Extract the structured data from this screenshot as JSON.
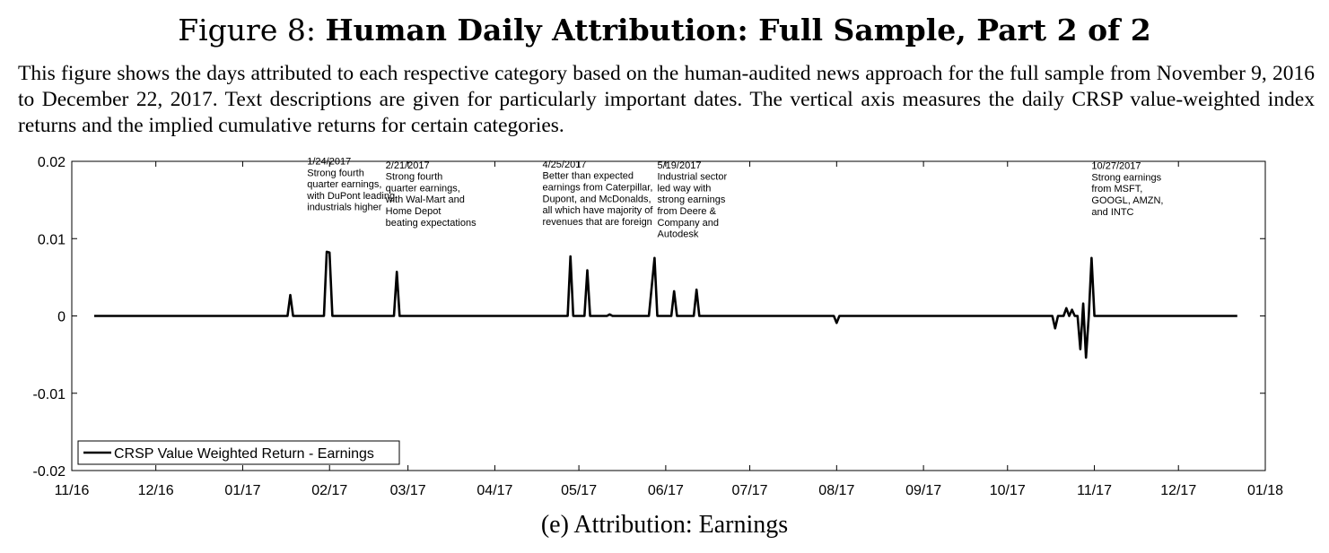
{
  "figure": {
    "prefix": "Figure 8:",
    "title": "Human Daily Attribution: Full Sample, Part 2 of 2",
    "caption": "This figure shows the days attributed to each respective category based on the human-audited news approach for the full sample from November 9, 2016 to December 22, 2017. Text descriptions are given for particularly important dates. The vertical axis measures the daily CRSP value-weighted index returns and the implied cumulative returns for certain categories.",
    "subcaption": "(e) Attribution: Earnings"
  },
  "chart_data": {
    "type": "line",
    "title": "",
    "xlabel": "",
    "ylabel": "",
    "xlim": [
      "2016-11-01",
      "2018-01-01"
    ],
    "ylim": [
      -0.02,
      0.02
    ],
    "grid": false,
    "legend_position": "bottom-left",
    "color": "#000000",
    "y_ticks": [
      {
        "value": 0.02,
        "label": "0.02"
      },
      {
        "value": 0.01,
        "label": "0.01"
      },
      {
        "value": 0,
        "label": "0"
      },
      {
        "value": -0.01,
        "label": "-0.01"
      },
      {
        "value": -0.02,
        "label": "-0.02"
      }
    ],
    "x_ticks": [
      {
        "date": "2016-11-01",
        "label": "11/16"
      },
      {
        "date": "2016-12-01",
        "label": "12/16"
      },
      {
        "date": "2017-01-01",
        "label": "01/17"
      },
      {
        "date": "2017-02-01",
        "label": "02/17"
      },
      {
        "date": "2017-03-01",
        "label": "03/17"
      },
      {
        "date": "2017-04-01",
        "label": "04/17"
      },
      {
        "date": "2017-05-01",
        "label": "05/17"
      },
      {
        "date": "2017-06-01",
        "label": "06/17"
      },
      {
        "date": "2017-07-01",
        "label": "07/17"
      },
      {
        "date": "2017-08-01",
        "label": "08/17"
      },
      {
        "date": "2017-09-01",
        "label": "09/17"
      },
      {
        "date": "2017-10-01",
        "label": "10/17"
      },
      {
        "date": "2017-11-01",
        "label": "11/17"
      },
      {
        "date": "2017-12-01",
        "label": "12/17"
      },
      {
        "date": "2018-01-01",
        "label": "01/18"
      }
    ],
    "series": [
      {
        "name": "CRSP Value Weighted Return - Earnings",
        "points": [
          {
            "date": "2016-11-09",
            "value": 0
          },
          {
            "date": "2017-01-17",
            "value": 0
          },
          {
            "date": "2017-01-18",
            "value": 0.0027
          },
          {
            "date": "2017-01-19",
            "value": 0
          },
          {
            "date": "2017-01-30",
            "value": 0
          },
          {
            "date": "2017-01-31",
            "value": 0.0083
          },
          {
            "date": "2017-02-01",
            "value": 0.0082
          },
          {
            "date": "2017-02-02",
            "value": 0
          },
          {
            "date": "2017-02-24",
            "value": 0
          },
          {
            "date": "2017-02-25",
            "value": 0.0057
          },
          {
            "date": "2017-02-26",
            "value": 0
          },
          {
            "date": "2017-04-27",
            "value": 0
          },
          {
            "date": "2017-04-28",
            "value": 0.0077
          },
          {
            "date": "2017-04-29",
            "value": 0
          },
          {
            "date": "2017-05-03",
            "value": 0
          },
          {
            "date": "2017-05-04",
            "value": 0.0059
          },
          {
            "date": "2017-05-05",
            "value": 0
          },
          {
            "date": "2017-05-11",
            "value": 0
          },
          {
            "date": "2017-05-12",
            "value": 0.0002
          },
          {
            "date": "2017-05-13",
            "value": 0
          },
          {
            "date": "2017-05-26",
            "value": 0
          },
          {
            "date": "2017-05-28",
            "value": 0.0075
          },
          {
            "date": "2017-05-29",
            "value": 0
          },
          {
            "date": "2017-06-03",
            "value": 0
          },
          {
            "date": "2017-06-04",
            "value": 0.0032
          },
          {
            "date": "2017-06-05",
            "value": 0
          },
          {
            "date": "2017-06-11",
            "value": 0
          },
          {
            "date": "2017-06-12",
            "value": 0.0034
          },
          {
            "date": "2017-06-13",
            "value": 0
          },
          {
            "date": "2017-07-31",
            "value": 0
          },
          {
            "date": "2017-08-01",
            "value": -0.0009
          },
          {
            "date": "2017-08-02",
            "value": 0
          },
          {
            "date": "2017-10-17",
            "value": 0
          },
          {
            "date": "2017-10-18",
            "value": -0.0016
          },
          {
            "date": "2017-10-19",
            "value": 0
          },
          {
            "date": "2017-10-21",
            "value": 0
          },
          {
            "date": "2017-10-22",
            "value": 0.001
          },
          {
            "date": "2017-10-23",
            "value": 0
          },
          {
            "date": "2017-10-24",
            "value": 0.0008
          },
          {
            "date": "2017-10-25",
            "value": 0
          },
          {
            "date": "2017-10-26",
            "value": 0
          },
          {
            "date": "2017-10-27",
            "value": -0.0043
          },
          {
            "date": "2017-10-28",
            "value": 0.0016
          },
          {
            "date": "2017-10-29",
            "value": -0.0054
          },
          {
            "date": "2017-10-30",
            "value": 0
          },
          {
            "date": "2017-10-31",
            "value": 0.0075
          },
          {
            "date": "2017-11-01",
            "value": 0
          },
          {
            "date": "2017-12-22",
            "value": 0
          }
        ]
      }
    ],
    "annotations": [
      {
        "date_label": "1/24/2017",
        "text": [
          "Strong fourth",
          "quarter earnings,",
          "with DuPont leading",
          "industrials higher"
        ],
        "anchor_date": "2017-01-24",
        "anchor_value": 0.0196
      },
      {
        "date_label": "2/21/2017",
        "text": [
          "Strong fourth",
          "quarter earnings,",
          "with Wal-Mart and",
          "Home Depot",
          "beating expectations"
        ],
        "anchor_date": "2017-02-21",
        "anchor_value": 0.0191
      },
      {
        "date_label": "4/25/2017",
        "text": [
          "Better than expected",
          "earnings from Caterpillar,",
          "Dupont, and McDonalds,",
          "all which have majority of",
          "revenues that are foreign"
        ],
        "anchor_date": "2017-04-18",
        "anchor_value": 0.0192
      },
      {
        "date_label": "5/19/2017",
        "text": [
          "Industrial sector",
          "led way with",
          "strong earnings",
          "from Deere &",
          "Company and",
          "Autodesk"
        ],
        "anchor_date": "2017-05-29",
        "anchor_value": 0.0191
      },
      {
        "date_label": "10/27/2017",
        "text": [
          "Strong earnings",
          "from MSFT,",
          "GOOGL, AMZN,",
          "and INTC"
        ],
        "anchor_date": "2017-10-31",
        "anchor_value": 0.019
      }
    ]
  }
}
